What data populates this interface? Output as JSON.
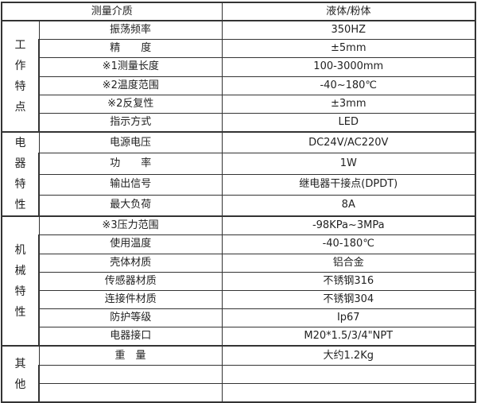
{
  "header": {
    "name": "测量介质",
    "value": "液体/粉体"
  },
  "groups": [
    {
      "label": "工作特点",
      "rows": [
        {
          "name": "振荡频率",
          "value": "350HZ"
        },
        {
          "name": "精　　度",
          "value": "±5mm"
        },
        {
          "name": "※1测量长度",
          "value": "100-3000mm"
        },
        {
          "name": "※2温度范围",
          "value": "-40~180℃"
        },
        {
          "name": "※2反复性",
          "value": "±3mm"
        },
        {
          "name": "指示方式",
          "value": "LED"
        }
      ]
    },
    {
      "label": "电器特性",
      "rows": [
        {
          "name": "电源电压",
          "value": "DC24V/AC220V"
        },
        {
          "name": "功　　率",
          "value": "1W"
        },
        {
          "name": "输出信号",
          "value": "继电器干接点(DPDT)"
        },
        {
          "name": "最大负荷",
          "value": "8A"
        }
      ]
    },
    {
      "label": "机械特性",
      "rows": [
        {
          "name": "※3压力范围",
          "value": "-98KPa~3MPa"
        },
        {
          "name": "使用温度",
          "value": "-40-180℃"
        },
        {
          "name": "壳体材质",
          "value": "铝合金"
        },
        {
          "name": "传感器材质",
          "value": "不锈钢316"
        },
        {
          "name": "连接件材质",
          "value": "不锈钢304"
        },
        {
          "name": "防护等级",
          "value": "Ip67"
        },
        {
          "name": "电器接口",
          "value": "M20*1.5/3/4\"NPT"
        }
      ]
    },
    {
      "label": "其他",
      "rows": [
        {
          "name": "重　量",
          "value": "大约1.2Kg"
        },
        {
          "name": "",
          "value": ""
        },
        {
          "name": "",
          "value": ""
        }
      ]
    }
  ]
}
